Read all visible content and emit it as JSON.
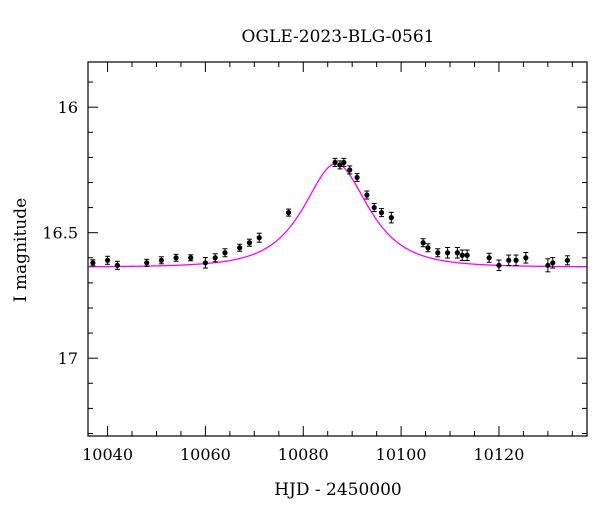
{
  "chart_data": {
    "type": "scatter",
    "title": "OGLE-2023-BLG-0561",
    "xlabel": "HJD - 2450000",
    "ylabel": "I magnitude",
    "xlim": [
      10036,
      10138
    ],
    "ylim": [
      17.31,
      15.82
    ],
    "y_inverted": true,
    "grid": false,
    "x_major_ticks": [
      10040,
      10060,
      10080,
      10100,
      10120
    ],
    "x_tick_labels": [
      "10040",
      "10060",
      "10080",
      "10100",
      "10120"
    ],
    "x_minor_step": 5,
    "y_major_ticks": [
      16,
      16.5,
      17
    ],
    "y_tick_labels": [
      "16",
      "16.5",
      "17"
    ],
    "y_minor_step": 0.1,
    "colors": {
      "points": "#000000",
      "model": "#ff00ff"
    },
    "observations": {
      "name": "",
      "x": [
        10037,
        10040,
        10042,
        10048,
        10051,
        10054,
        10057,
        10060,
        10062,
        10064,
        10067,
        10069,
        10071,
        10077,
        10086.5,
        10087.5,
        10088.3,
        10089.5,
        10091,
        10093,
        10094.5,
        10096,
        10098,
        10104.5,
        10105.5,
        10107.5,
        10109.5,
        10111.5,
        10112.5,
        10113.5,
        10118,
        10120,
        10122,
        10123.5,
        10125.5,
        10130,
        10131,
        10134
      ],
      "y": [
        16.62,
        16.61,
        16.63,
        16.62,
        16.61,
        16.6,
        16.6,
        16.62,
        16.6,
        16.58,
        16.56,
        16.54,
        16.52,
        16.42,
        16.22,
        16.23,
        16.22,
        16.25,
        16.28,
        16.35,
        16.4,
        16.42,
        16.44,
        16.54,
        16.56,
        16.58,
        16.58,
        16.58,
        16.59,
        16.59,
        16.6,
        16.63,
        16.61,
        16.61,
        16.6,
        16.63,
        16.62,
        16.61
      ],
      "yerr": [
        0.006,
        0.01,
        0.01,
        0.008,
        0.008,
        0.008,
        0.006,
        0.015,
        0.01,
        0.01,
        0.008,
        0.008,
        0.012,
        0.008,
        0.01,
        0.01,
        0.01,
        0.01,
        0.01,
        0.01,
        0.01,
        0.01,
        0.015,
        0.01,
        0.01,
        0.01,
        0.015,
        0.015,
        0.015,
        0.015,
        0.012,
        0.015,
        0.015,
        0.015,
        0.015,
        0.02,
        0.015,
        0.012
      ]
    },
    "model": {
      "name": "",
      "baseline_mag": 16.637,
      "peak_mag": 16.225,
      "t0": 10086.7,
      "tE": 8.5,
      "x_range": [
        10036,
        10138
      ]
    }
  }
}
